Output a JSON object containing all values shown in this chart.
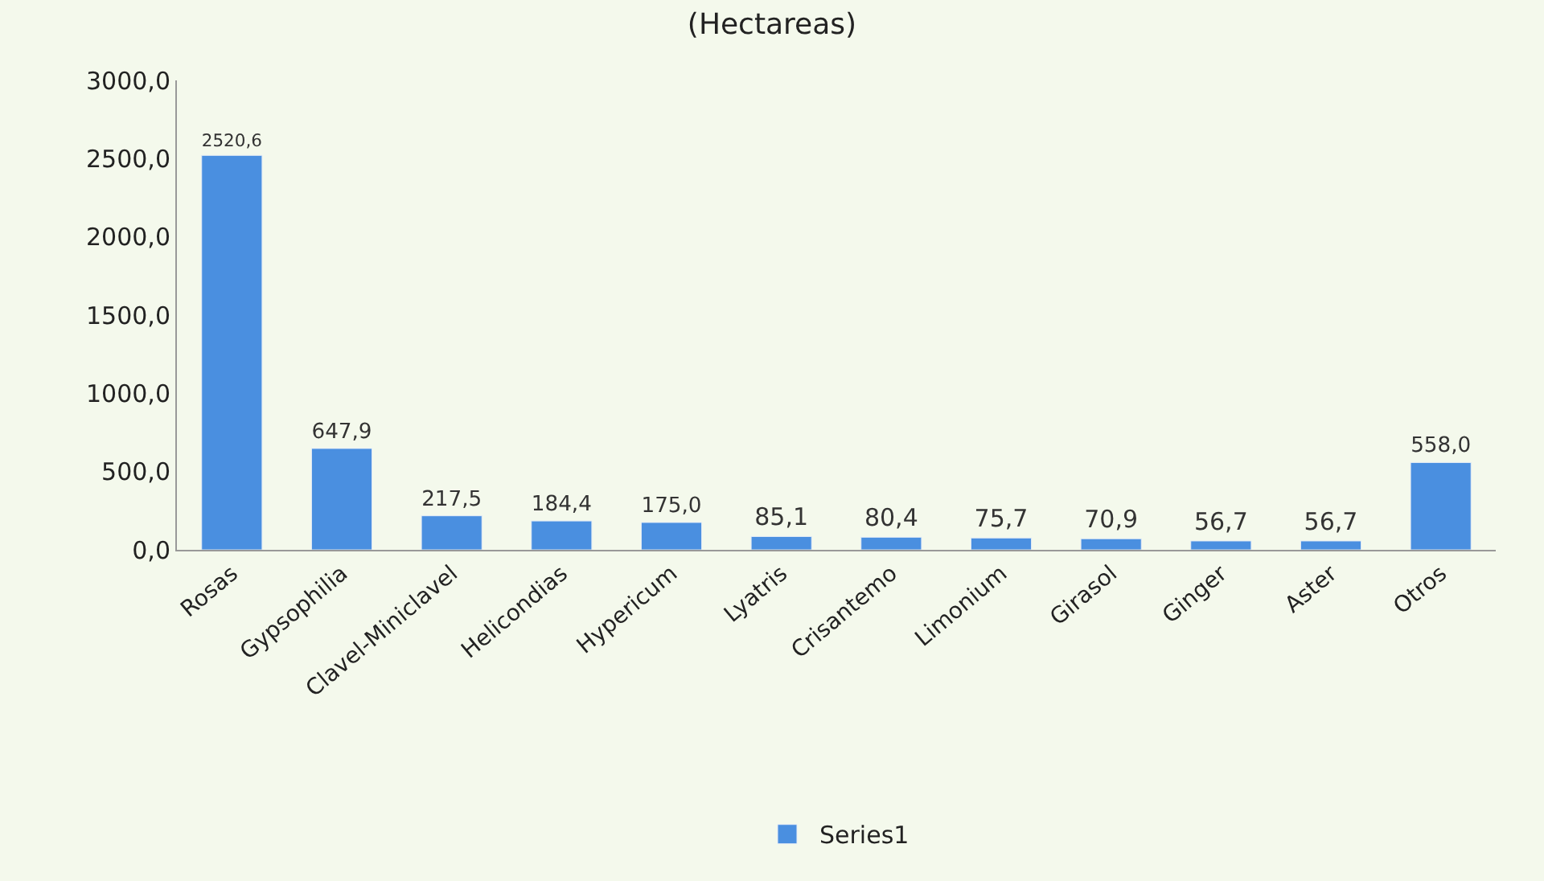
{
  "chart_data": {
    "type": "bar",
    "title": "(Hectareas)",
    "categories": [
      "Rosas",
      "Gypsophilia",
      "Clavel-Miniclavel",
      "Helicondias",
      "Hypericum",
      "Lyatris",
      "Crisantemo",
      "Limonium",
      "Girasol",
      "Ginger",
      "Aster",
      "Otros"
    ],
    "series": [
      {
        "name": "Series1",
        "color": "#4a8fe0",
        "values": [
          2520.6,
          647.9,
          217.5,
          184.4,
          175.0,
          85.1,
          80.4,
          75.7,
          70.9,
          56.7,
          56.7,
          558.0
        ],
        "value_labels": [
          "2520,6",
          "647,9",
          "217,5",
          "184,4",
          "175,0",
          "85,1",
          "80,4",
          "75,7",
          "70,9",
          "56,7",
          "56,7",
          "558,0"
        ]
      }
    ],
    "ylim": [
      0,
      3000
    ],
    "yticks": [
      {
        "value": 0,
        "label": "0,0"
      },
      {
        "value": 500,
        "label": "500,0"
      },
      {
        "value": 1000,
        "label": "1000,0"
      },
      {
        "value": 1500,
        "label": "1500,0"
      },
      {
        "value": 2000,
        "label": "2000,0"
      },
      {
        "value": 2500,
        "label": "2500,0"
      },
      {
        "value": 3000,
        "label": "3000,0"
      }
    ],
    "grid": false,
    "legend": "bottom"
  }
}
